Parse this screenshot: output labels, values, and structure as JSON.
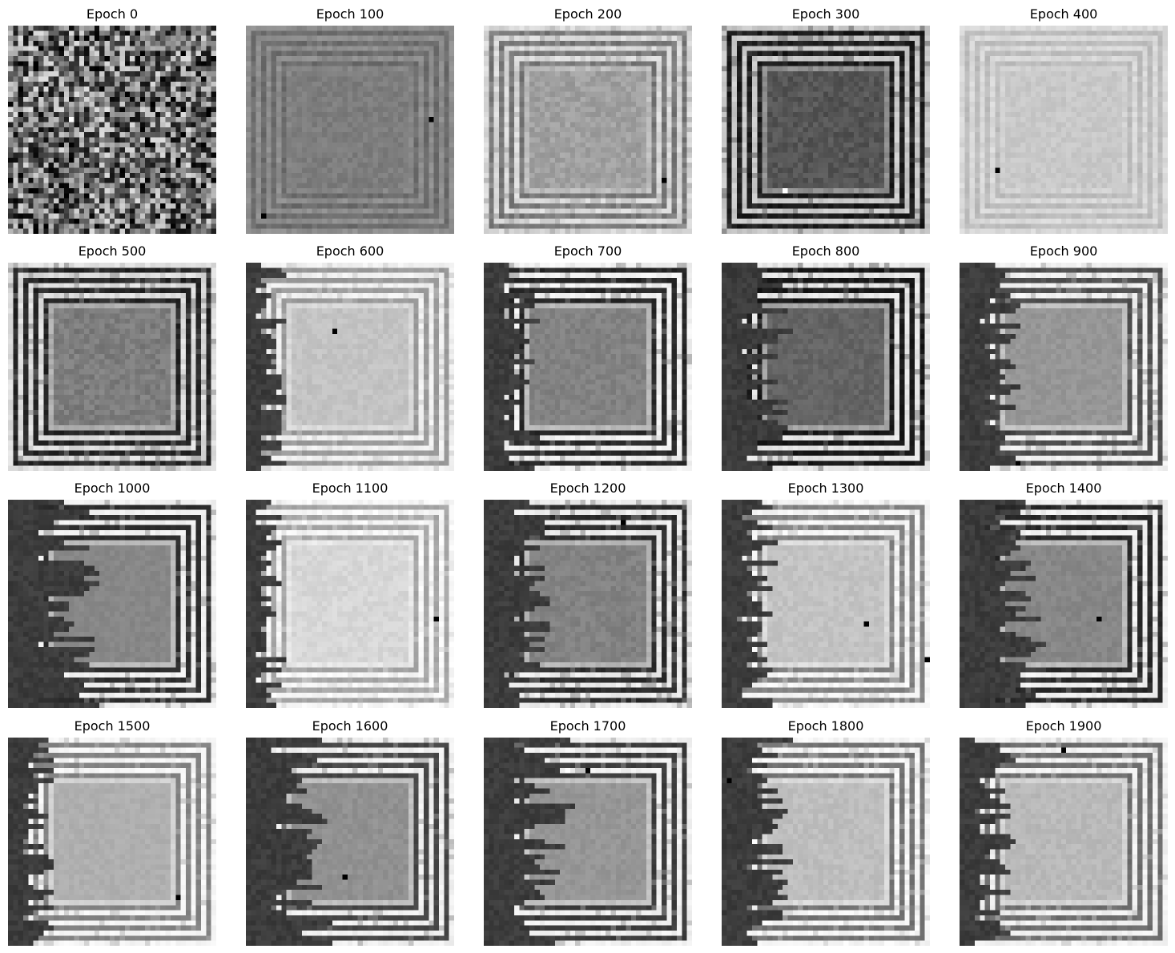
{
  "figure": {
    "panels": [
      {
        "title": "Epoch 0",
        "epoch": 0,
        "mean_gray": 110,
        "noise": 70,
        "frame": 0.0,
        "dark_left": 0.0,
        "outer": 0,
        "inner": 0,
        "dots": [
          [
            8,
            5
          ],
          [
            14,
            26
          ],
          [
            12,
            34
          ]
        ],
        "bright_dots": [
          [
            18,
            12
          ]
        ]
      },
      {
        "title": "Epoch 100",
        "epoch": 100,
        "mean_gray": 125,
        "noise": 10,
        "frame": 0.5,
        "dark_left": 0.0,
        "outer": 160,
        "inner": 90,
        "dots": [
          [
            18,
            36
          ],
          [
            37,
            3
          ]
        ],
        "bright_dots": []
      },
      {
        "title": "Epoch 200",
        "epoch": 200,
        "mean_gray": 160,
        "noise": 14,
        "frame": 0.8,
        "dark_left": 0.0,
        "outer": 230,
        "inner": 110,
        "dots": [
          [
            30,
            35
          ]
        ],
        "bright_dots": []
      },
      {
        "title": "Epoch 300",
        "epoch": 300,
        "mean_gray": 85,
        "noise": 14,
        "frame": 1.0,
        "dark_left": 0.0,
        "outer": 200,
        "inner": 30,
        "dots": [],
        "bright_dots": [
          [
            32,
            12
          ]
        ]
      },
      {
        "title": "Epoch 400",
        "epoch": 400,
        "mean_gray": 200,
        "noise": 8,
        "frame": 0.5,
        "dark_left": 0.0,
        "outer": 235,
        "inner": 175,
        "dots": [
          [
            28,
            7
          ]
        ],
        "bright_dots": []
      },
      {
        "title": "Epoch 500",
        "epoch": 500,
        "mean_gray": 125,
        "noise": 14,
        "frame": 1.0,
        "dark_left": 0.0,
        "outer": 220,
        "inner": 40,
        "dots": [],
        "bright_dots": []
      },
      {
        "title": "Epoch 600",
        "epoch": 600,
        "mean_gray": 195,
        "noise": 8,
        "frame": 0.9,
        "dark_left": 0.12,
        "outer": 245,
        "inner": 150,
        "dots": [
          [
            13,
            17
          ]
        ],
        "bright_dots": []
      },
      {
        "title": "Epoch 700",
        "epoch": 700,
        "mean_gray": 130,
        "noise": 10,
        "frame": 1.0,
        "dark_left": 0.18,
        "outer": 240,
        "inner": 40,
        "dots": [],
        "bright_dots": []
      },
      {
        "title": "Epoch 800",
        "epoch": 800,
        "mean_gray": 100,
        "noise": 10,
        "frame": 1.0,
        "dark_left": 0.22,
        "outer": 230,
        "inner": 25,
        "dots": [],
        "bright_dots": []
      },
      {
        "title": "Epoch 900",
        "epoch": 900,
        "mean_gray": 150,
        "noise": 8,
        "frame": 1.0,
        "dark_left": 0.2,
        "outer": 240,
        "inner": 80,
        "dots": [
          [
            39,
            11
          ]
        ],
        "bright_dots": []
      },
      {
        "title": "Epoch 1000",
        "epoch": 1000,
        "mean_gray": 135,
        "noise": 6,
        "frame": 1.0,
        "dark_left": 0.3,
        "outer": 240,
        "inner": 45,
        "dots": [],
        "bright_dots": []
      },
      {
        "title": "Epoch 1100",
        "epoch": 1100,
        "mean_gray": 215,
        "noise": 8,
        "frame": 0.9,
        "dark_left": 0.12,
        "outer": 250,
        "inner": 160,
        "dots": [
          [
            23,
            37
          ]
        ],
        "bright_dots": []
      },
      {
        "title": "Epoch 1200",
        "epoch": 1200,
        "mean_gray": 130,
        "noise": 10,
        "frame": 1.0,
        "dark_left": 0.22,
        "outer": 235,
        "inner": 45,
        "dots": [
          [
            4,
            27
          ]
        ],
        "bright_dots": []
      },
      {
        "title": "Epoch 1300",
        "epoch": 1300,
        "mean_gray": 195,
        "noise": 8,
        "frame": 1.0,
        "dark_left": 0.16,
        "outer": 245,
        "inner": 130,
        "dots": [
          [
            24,
            28
          ],
          [
            31,
            40
          ]
        ],
        "bright_dots": []
      },
      {
        "title": "Epoch 1400",
        "epoch": 1400,
        "mean_gray": 135,
        "noise": 8,
        "frame": 1.0,
        "dark_left": 0.28,
        "outer": 240,
        "inner": 40,
        "dots": [
          [
            23,
            27
          ]
        ],
        "bright_dots": []
      },
      {
        "title": "Epoch 1500",
        "epoch": 1500,
        "mean_gray": 175,
        "noise": 6,
        "frame": 1.0,
        "dark_left": 0.14,
        "outer": 245,
        "inner": 130,
        "dots": [
          [
            31,
            33
          ]
        ],
        "bright_dots": []
      },
      {
        "title": "Epoch 1600",
        "epoch": 1600,
        "mean_gray": 145,
        "noise": 8,
        "frame": 1.0,
        "dark_left": 0.26,
        "outer": 240,
        "inner": 70,
        "dots": [
          [
            27,
            19
          ]
        ],
        "bright_dots": []
      },
      {
        "title": "Epoch 1700",
        "epoch": 1700,
        "mean_gray": 150,
        "noise": 8,
        "frame": 1.0,
        "dark_left": 0.3,
        "outer": 240,
        "inner": 60,
        "dots": [
          [
            6,
            20
          ]
        ],
        "bright_dots": [
          [
            6,
            16
          ]
        ]
      },
      {
        "title": "Epoch 1800",
        "epoch": 1800,
        "mean_gray": 190,
        "noise": 8,
        "frame": 1.0,
        "dark_left": 0.22,
        "outer": 245,
        "inner": 115,
        "dots": [
          [
            8,
            1
          ]
        ],
        "bright_dots": []
      },
      {
        "title": "Epoch 1900",
        "epoch": 1900,
        "mean_gray": 185,
        "noise": 8,
        "frame": 1.0,
        "dark_left": 0.16,
        "outer": 240,
        "inner": 110,
        "dots": [
          [
            2,
            20
          ]
        ],
        "bright_dots": []
      }
    ]
  }
}
